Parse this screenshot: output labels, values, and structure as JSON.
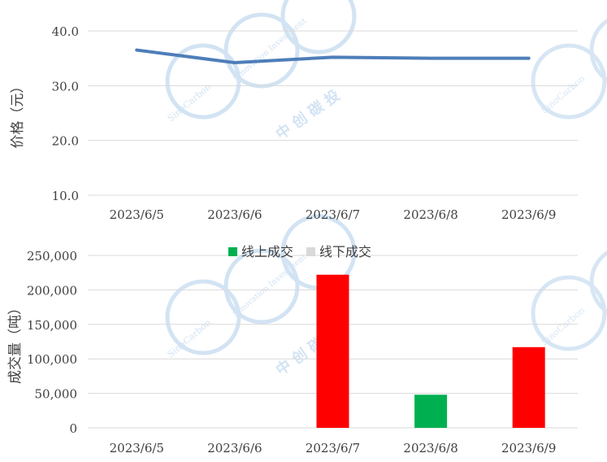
{
  "chart_data": [
    {
      "type": "line",
      "categories": [
        "2023/6/5",
        "2023/6/6",
        "2023/6/7",
        "2023/6/8",
        "2023/6/9"
      ],
      "series": [
        {
          "values": [
            36.5,
            34.2,
            35.2,
            35.0,
            35.0
          ],
          "color": "#4E7EB9"
        }
      ],
      "y_ticks": [
        "10.0",
        "20.0",
        "30.0",
        "40.0"
      ],
      "ylim": [
        10,
        40
      ],
      "ylabel": "价格（元）",
      "grid": true
    },
    {
      "type": "bar",
      "categories": [
        "2023/6/5",
        "2023/6/6",
        "2023/6/7",
        "2023/6/8",
        "2023/6/9"
      ],
      "values": [
        0,
        0,
        222000,
        48000,
        117000
      ],
      "bar_colors": [
        "#FF0000",
        "#FF0000",
        "#FF0000",
        "#00B050",
        "#FF0000"
      ],
      "y_ticks": [
        "0",
        "50,000",
        "100,000",
        "150,000",
        "200,000",
        "250,000"
      ],
      "ylim": [
        0,
        250000
      ],
      "ylabel": "成交量（吨）",
      "legend": {
        "position": "top",
        "items": [
          {
            "label": "线上成交",
            "color": "#00B050"
          },
          {
            "label": "线下成交",
            "color": "#D9D9D9"
          }
        ]
      },
      "grid": true
    }
  ],
  "watermark": {
    "text_sinocarbon": "SinoCarbon",
    "text_innovation": "Innovation Investment",
    "text_cn": "中 创 碳 投",
    "color": "#9DC3E6"
  }
}
